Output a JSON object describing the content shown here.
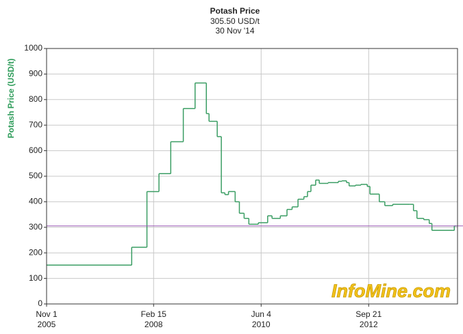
{
  "chart_data": {
    "type": "line",
    "step": "post",
    "title": "Potash Price",
    "current_value": 305.5,
    "current_value_label": "305.50 USD/t",
    "current_value_color": "#9b59b6",
    "date": "30 Nov '14",
    "ylabel": "Potash Price (USD/t)",
    "watermark": "InfoMine.com",
    "grid": true,
    "xlim": [
      "2005-11-01",
      "2014-08-16"
    ],
    "xticks": [
      {
        "value": "2005-11-01",
        "label": [
          "Nov 1",
          "2005"
        ]
      },
      {
        "value": "2008-02-15",
        "label": [
          "Feb 15",
          "2008"
        ]
      },
      {
        "value": "2010-06-04",
        "label": [
          "Jun 4",
          "2010"
        ]
      },
      {
        "value": "2012-09-21",
        "label": [
          "Sep 21",
          "2012"
        ]
      }
    ],
    "ylim": [
      0,
      1000
    ],
    "yticks": [
      0,
      100,
      200,
      300,
      400,
      500,
      600,
      700,
      800,
      900,
      1000
    ],
    "x": [
      "2005-11-01",
      "2007-08-28",
      "2007-12-25",
      "2008-03-28",
      "2008-06-28",
      "2008-10-04",
      "2009-01-04",
      "2009-04-02",
      "2009-04-23",
      "2009-06-26",
      "2009-07-28",
      "2009-08-25",
      "2009-09-22",
      "2009-11-13",
      "2009-12-16",
      "2010-01-22",
      "2010-02-28",
      "2010-05-13",
      "2010-07-25",
      "2010-08-28",
      "2010-11-01",
      "2010-12-23",
      "2011-02-01",
      "2011-03-19",
      "2011-05-04",
      "2011-06-01",
      "2011-06-28",
      "2011-08-04",
      "2011-09-01",
      "2011-11-09",
      "2012-01-28",
      "2012-02-25",
      "2012-04-01",
      "2012-04-21",
      "2012-06-10",
      "2012-07-22",
      "2012-09-10",
      "2012-10-01",
      "2012-12-13",
      "2013-01-25",
      "2013-03-28",
      "2013-08-10",
      "2013-09-06",
      "2013-10-03",
      "2013-11-25",
      "2014-01-07",
      "2014-01-28",
      "2014-07-07",
      "2014-07-22"
    ],
    "series": [
      {
        "name": "Potash",
        "color": "#3a9d63",
        "values": [
          152,
          222,
          440,
          510,
          635,
          765,
          865,
          745,
          715,
          655,
          435,
          428,
          440,
          400,
          355,
          335,
          312,
          318,
          345,
          335,
          345,
          370,
          380,
          410,
          420,
          440,
          465,
          485,
          472,
          475,
          480,
          482,
          475,
          462,
          465,
          468,
          460,
          430,
          400,
          385,
          390,
          390,
          365,
          335,
          330,
          315,
          288,
          288,
          305.5
        ]
      }
    ]
  }
}
